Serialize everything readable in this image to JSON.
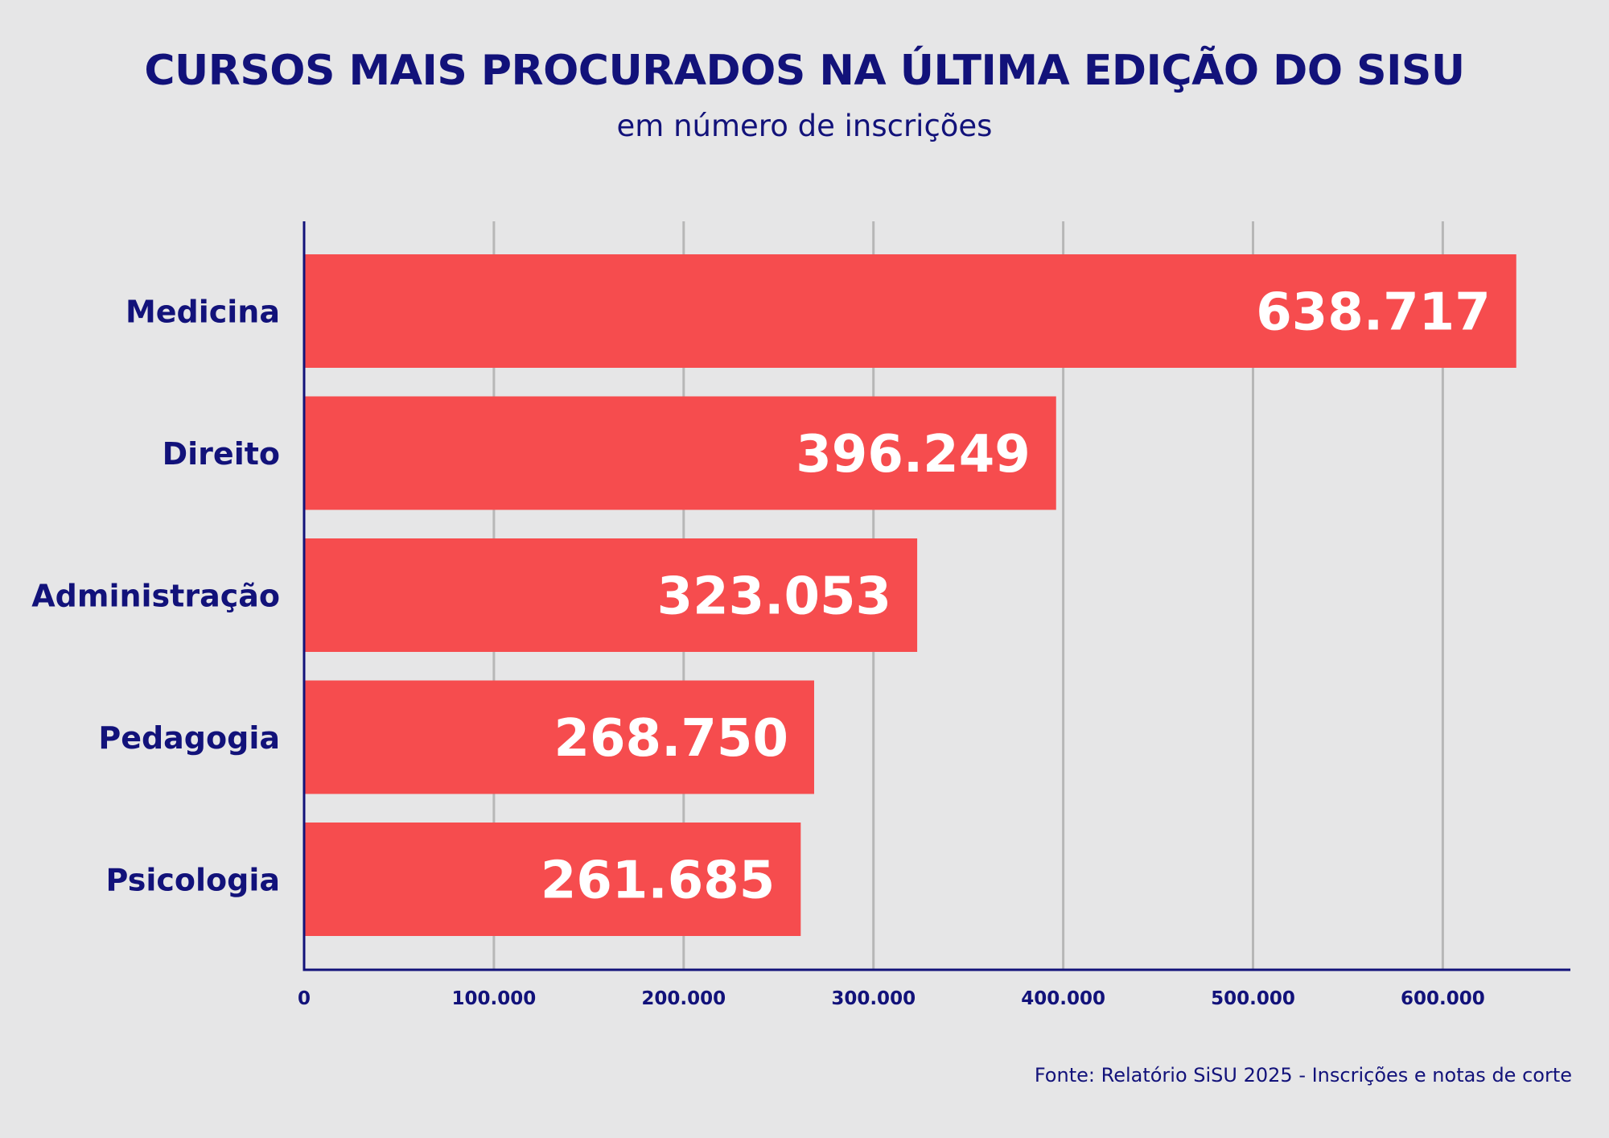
{
  "chart_data": {
    "type": "bar",
    "orientation": "horizontal",
    "title": "CURSOS MAIS PROCURADOS NA ÚLTIMA EDIÇÃO DO SISU",
    "subtitle": "em número de inscrições",
    "categories": [
      "Medicina",
      "Direito",
      "Administração",
      "Pedagogia",
      "Psicologia"
    ],
    "values": [
      638717,
      396249,
      323053,
      268750,
      261685
    ],
    "value_labels": [
      "638.717",
      "396.249",
      "323.053",
      "268.750",
      "261.685"
    ],
    "xlim": [
      0,
      670000
    ],
    "ticks": [
      0,
      100000,
      200000,
      300000,
      400000,
      500000,
      600000
    ],
    "tick_labels": [
      "0",
      "100.000",
      "200.000",
      "300.000",
      "400.000",
      "500.000",
      "600.000"
    ],
    "grid": "vertical",
    "source": "Fonte: Relatório SiSU 2025 - Inscrições e notas de corte",
    "colors": {
      "bar": "#f64c4e",
      "text": "#12127a",
      "value_label": "#ffffff",
      "grid": "#b7b7b7",
      "background": "#e6e6e7"
    }
  }
}
